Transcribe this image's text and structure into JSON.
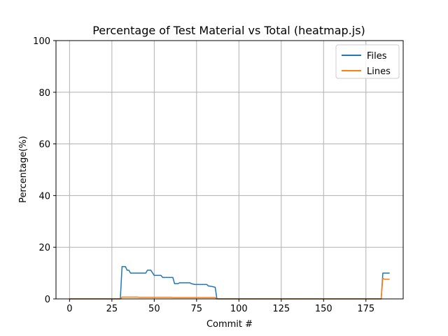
{
  "chart_data": {
    "type": "line",
    "title": "Percentage of Test Material vs Total (heatmap.js)",
    "xlabel": "Commit #",
    "ylabel": "Percentage(%)",
    "xlim": [
      -8,
      197
    ],
    "ylim": [
      0,
      100
    ],
    "xticks": [
      0,
      25,
      50,
      75,
      100,
      125,
      150,
      175
    ],
    "yticks": [
      0,
      20,
      40,
      60,
      80,
      100
    ],
    "grid": true,
    "legend_position": "top-right",
    "series": [
      {
        "name": "Files",
        "color": "#1f77b4",
        "points": [
          [
            0,
            0
          ],
          [
            30,
            0
          ],
          [
            31,
            12.5
          ],
          [
            33,
            12.5
          ],
          [
            34,
            11.1
          ],
          [
            35,
            11.1
          ],
          [
            36,
            10.0
          ],
          [
            45,
            10.0
          ],
          [
            46,
            11.1
          ],
          [
            48,
            11.1
          ],
          [
            50,
            9.1
          ],
          [
            54,
            9.1
          ],
          [
            55,
            8.3
          ],
          [
            61,
            8.3
          ],
          [
            62,
            5.9
          ],
          [
            64,
            5.9
          ],
          [
            65,
            6.25
          ],
          [
            71,
            6.25
          ],
          [
            72,
            5.9
          ],
          [
            74,
            5.6
          ],
          [
            81,
            5.6
          ],
          [
            82,
            5.0
          ],
          [
            84,
            4.8
          ],
          [
            86,
            4.5
          ],
          [
            87,
            0
          ],
          [
            184,
            0
          ],
          [
            185,
            10.0
          ],
          [
            189,
            10.0
          ]
        ]
      },
      {
        "name": "Lines",
        "color": "#ff7f0e",
        "points": [
          [
            0,
            0
          ],
          [
            30,
            0
          ],
          [
            31,
            0.7
          ],
          [
            40,
            0.7
          ],
          [
            41,
            0.6
          ],
          [
            60,
            0.6
          ],
          [
            61,
            0.5
          ],
          [
            86,
            0.5
          ],
          [
            87,
            0
          ],
          [
            184,
            0
          ],
          [
            185,
            8.0
          ],
          [
            186,
            7.6
          ],
          [
            189,
            7.6
          ]
        ]
      }
    ]
  }
}
